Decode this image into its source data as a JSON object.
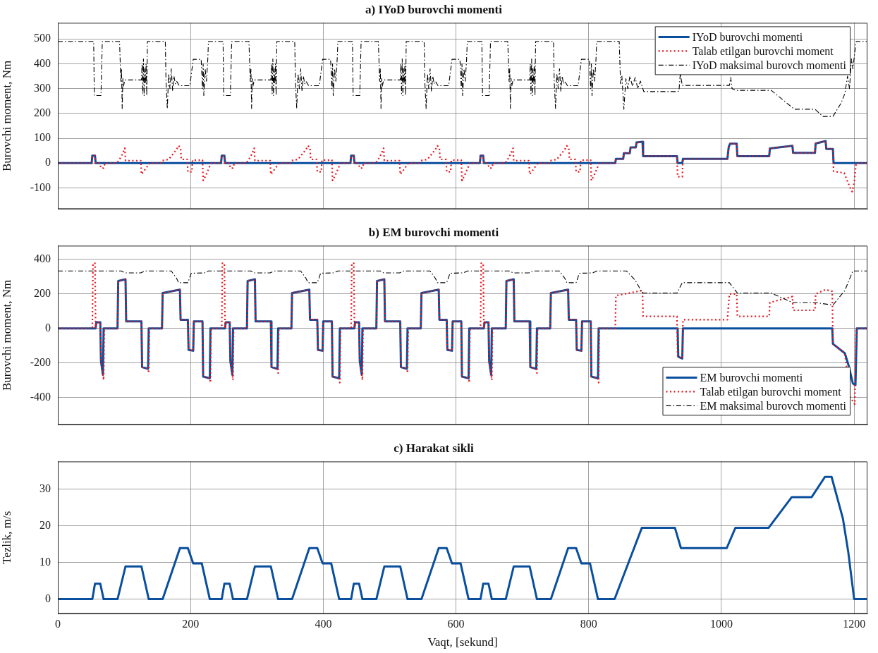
{
  "chart_data": [
    {
      "type": "line",
      "title": "a) IYoD burovchi momenti",
      "ylabel": "Burovchi moment, Nm",
      "xlim": [
        0,
        1220
      ],
      "xticks": [
        0,
        200,
        400,
        600,
        800,
        1000,
        1200
      ],
      "ylim": [
        -185,
        565
      ],
      "yticks": [
        -100,
        0,
        100,
        200,
        300,
        400,
        500
      ],
      "grid": true,
      "legend": "top right",
      "tick_labels": "y",
      "marker": "none",
      "series": [
        {
          "name": "IYoD burovchi momenti",
          "color": "#0a4f9e",
          "line_style": "solid",
          "x": [
            0,
            51,
            52,
            56,
            57,
            246,
            247,
            251,
            252,
            441,
            442,
            446,
            447,
            636,
            637,
            641,
            642,
            840,
            841,
            852,
            853,
            862,
            863,
            871,
            872,
            881,
            882,
            933,
            934,
            941,
            942,
            1009,
            1011,
            1013,
            1023,
            1024,
            1072,
            1073,
            1107,
            1108,
            1141,
            1142,
            1157,
            1158,
            1168,
            1169,
            1220
          ],
          "values": [
            0,
            0,
            30,
            30,
            0,
            0,
            30,
            30,
            0,
            0,
            30,
            30,
            0,
            0,
            30,
            30,
            0,
            0,
            17,
            17,
            40,
            40,
            63,
            63,
            83,
            86,
            28,
            28,
            0,
            0,
            17,
            17,
            65,
            78,
            78,
            28,
            28,
            59,
            70,
            41,
            41,
            79,
            89,
            57,
            57,
            0,
            0
          ]
        },
        {
          "name": "Talab etilgan burovchi moment",
          "color": "#e8141c",
          "line_style": "dotted",
          "x": [
            0,
            51,
            52,
            56,
            57,
            63,
            65,
            69,
            71,
            89,
            93,
            97,
            101,
            102,
            125,
            126,
            129,
            133,
            137,
            139,
            155,
            157,
            167,
            173,
            179,
            182,
            185,
            186,
            195,
            196,
            202,
            203,
            218,
            219,
            223,
            227,
            231,
            246,
            247,
            251,
            252,
            258,
            260,
            264,
            266,
            284,
            288,
            292,
            296,
            297,
            320,
            321,
            324,
            328,
            332,
            334,
            350,
            352,
            362,
            368,
            374,
            377,
            380,
            381,
            390,
            391,
            397,
            398,
            413,
            414,
            418,
            422,
            426,
            441,
            442,
            446,
            447,
            453,
            455,
            459,
            461,
            479,
            483,
            487,
            491,
            492,
            515,
            516,
            519,
            523,
            527,
            529,
            545,
            547,
            557,
            563,
            569,
            572,
            575,
            576,
            585,
            586,
            592,
            593,
            608,
            609,
            613,
            617,
            621,
            636,
            637,
            641,
            642,
            648,
            650,
            654,
            656,
            674,
            678,
            682,
            686,
            687,
            710,
            711,
            714,
            718,
            722,
            724,
            740,
            742,
            752,
            758,
            764,
            767,
            770,
            771,
            780,
            781,
            787,
            788,
            803,
            804,
            808,
            812,
            816,
            840,
            841,
            852,
            853,
            862,
            863,
            871,
            872,
            881,
            882,
            933,
            934,
            941,
            942,
            1009,
            1011,
            1013,
            1023,
            1024,
            1072,
            1073,
            1107,
            1108,
            1141,
            1142,
            1157,
            1158,
            1168,
            1169,
            1185,
            1194,
            1197,
            1200,
            1203,
            1220
          ],
          "values": [
            0,
            0,
            30,
            30,
            0,
            0,
            -20,
            -20,
            0,
            0,
            15,
            35,
            60,
            10,
            10,
            -45,
            -35,
            -20,
            -5,
            0,
            0,
            10,
            15,
            35,
            55,
            70,
            60,
            15,
            15,
            -35,
            -35,
            12,
            12,
            -70,
            -50,
            -25,
            0,
            0,
            30,
            30,
            0,
            0,
            -20,
            -20,
            0,
            0,
            15,
            35,
            60,
            10,
            10,
            -45,
            -35,
            -20,
            -5,
            0,
            0,
            10,
            15,
            35,
            55,
            70,
            60,
            15,
            15,
            -35,
            -35,
            12,
            12,
            -70,
            -50,
            -25,
            0,
            0,
            30,
            30,
            0,
            0,
            -20,
            -20,
            0,
            0,
            15,
            35,
            60,
            10,
            10,
            -45,
            -35,
            -20,
            -5,
            0,
            0,
            10,
            15,
            35,
            55,
            70,
            60,
            15,
            15,
            -35,
            -35,
            12,
            12,
            -70,
            -50,
            -25,
            0,
            0,
            30,
            30,
            0,
            0,
            -20,
            -20,
            0,
            0,
            15,
            35,
            60,
            10,
            10,
            -45,
            -35,
            -20,
            -5,
            0,
            0,
            10,
            15,
            35,
            55,
            70,
            60,
            15,
            15,
            -35,
            -35,
            12,
            12,
            -70,
            -50,
            -25,
            0,
            0,
            17,
            17,
            40,
            40,
            63,
            63,
            83,
            86,
            28,
            28,
            -55,
            -55,
            17,
            17,
            65,
            78,
            78,
            28,
            28,
            59,
            70,
            41,
            41,
            79,
            89,
            57,
            57,
            -33,
            -40,
            -100,
            -115,
            -80,
            0,
            0
          ]
        },
        {
          "name": "IYoD maksimal burovch momenti",
          "color": "#000000",
          "line_style": "dashdot",
          "x": [
            0,
            54,
            55,
            65,
            67,
            93,
            95,
            96,
            97,
            98,
            99,
            101,
            126,
            127,
            128,
            129,
            130,
            131,
            132,
            133,
            134,
            135,
            162,
            163,
            165,
            167,
            169,
            171,
            173,
            175,
            177,
            179,
            183,
            199,
            204,
            216,
            218,
            219,
            220,
            222,
            224,
            226,
            227,
            249,
            250,
            260,
            262,
            288,
            290,
            291,
            292,
            293,
            294,
            296,
            321,
            322,
            323,
            324,
            325,
            326,
            327,
            328,
            329,
            330,
            357,
            358,
            360,
            362,
            364,
            366,
            368,
            370,
            372,
            374,
            378,
            394,
            399,
            411,
            413,
            414,
            415,
            417,
            419,
            421,
            422,
            444,
            445,
            455,
            457,
            483,
            485,
            486,
            487,
            488,
            489,
            491,
            516,
            517,
            518,
            519,
            520,
            521,
            522,
            523,
            524,
            525,
            552,
            553,
            555,
            557,
            559,
            561,
            563,
            565,
            567,
            569,
            573,
            589,
            594,
            606,
            608,
            609,
            610,
            612,
            614,
            616,
            617,
            639,
            640,
            650,
            652,
            678,
            680,
            681,
            682,
            683,
            684,
            686,
            711,
            712,
            713,
            714,
            715,
            716,
            717,
            718,
            719,
            720,
            747,
            748,
            750,
            752,
            754,
            756,
            758,
            760,
            762,
            764,
            768,
            784,
            789,
            801,
            803,
            804,
            805,
            807,
            809,
            811,
            812,
            846,
            848,
            850,
            853,
            856,
            859,
            862,
            866,
            870,
            874,
            878,
            883,
            933,
            936,
            938,
            941,
            1012,
            1014,
            1016,
            1022,
            1075,
            1110,
            1141,
            1153,
            1168,
            1180,
            1186,
            1190,
            1193,
            1196,
            1198,
            1203,
            1220
          ],
          "values": [
            490,
            490,
            272,
            272,
            490,
            490,
            330,
            380,
            220,
            340,
            310,
            335,
            335,
            400,
            280,
            420,
            272,
            380,
            320,
            400,
            272,
            490,
            490,
            330,
            220,
            360,
            300,
            380,
            290,
            350,
            320,
            330,
            312,
            312,
            418,
            418,
            300,
            400,
            272,
            380,
            330,
            420,
            490,
            490,
            272,
            272,
            490,
            490,
            330,
            380,
            220,
            340,
            310,
            335,
            335,
            400,
            280,
            420,
            272,
            380,
            320,
            400,
            272,
            490,
            490,
            330,
            220,
            360,
            300,
            380,
            290,
            350,
            320,
            330,
            312,
            312,
            418,
            418,
            300,
            400,
            272,
            380,
            330,
            420,
            490,
            490,
            272,
            272,
            490,
            490,
            330,
            380,
            220,
            340,
            310,
            335,
            335,
            400,
            280,
            420,
            272,
            380,
            320,
            400,
            272,
            490,
            490,
            330,
            220,
            360,
            300,
            380,
            290,
            350,
            320,
            330,
            312,
            312,
            418,
            418,
            300,
            400,
            272,
            380,
            330,
            420,
            490,
            490,
            272,
            272,
            490,
            490,
            330,
            380,
            220,
            340,
            310,
            335,
            335,
            400,
            280,
            420,
            272,
            380,
            320,
            400,
            272,
            490,
            490,
            330,
            220,
            360,
            300,
            380,
            290,
            350,
            320,
            330,
            312,
            312,
            418,
            418,
            300,
            400,
            272,
            380,
            330,
            420,
            490,
            490,
            320,
            350,
            217,
            340,
            300,
            350,
            310,
            345,
            300,
            330,
            288,
            288,
            290,
            360,
            313,
            313,
            345,
            300,
            293,
            293,
            217,
            217,
            188,
            188,
            240,
            280,
            350,
            300,
            420,
            380,
            490,
            490
          ]
        }
      ]
    },
    {
      "type": "line",
      "title": "b) EM burovchi momenti",
      "ylabel": "Burovchi moment, Nm",
      "xlim": [
        0,
        1220
      ],
      "xticks": [
        0,
        200,
        400,
        600,
        800,
        1000,
        1200
      ],
      "ylim": [
        -560,
        480
      ],
      "yticks": [
        -400,
        -200,
        0,
        200,
        400
      ],
      "grid": true,
      "legend": "bottom right",
      "tick_labels": "y",
      "marker": "none",
      "series": [
        {
          "name": "EM burovchi momenti",
          "color": "#0a4f9e",
          "line_style": "solid",
          "x": [
            0,
            57,
            58,
            64,
            65,
            68,
            69,
            90,
            91,
            102,
            103,
            126,
            127,
            136,
            137,
            157,
            158,
            184,
            185,
            196,
            197,
            204,
            205,
            218,
            219,
            229,
            230,
            252,
            253,
            259,
            260,
            263,
            264,
            285,
            286,
            297,
            298,
            321,
            322,
            331,
            332,
            352,
            353,
            379,
            380,
            391,
            392,
            399,
            400,
            413,
            414,
            424,
            425,
            447,
            448,
            454,
            455,
            458,
            459,
            480,
            481,
            492,
            493,
            516,
            517,
            526,
            527,
            547,
            548,
            574,
            575,
            586,
            587,
            594,
            595,
            608,
            609,
            619,
            620,
            642,
            643,
            649,
            650,
            653,
            654,
            675,
            676,
            687,
            688,
            711,
            712,
            721,
            722,
            742,
            743,
            769,
            770,
            781,
            782,
            789,
            790,
            803,
            804,
            814,
            815,
            934,
            935,
            941,
            942,
            1167,
            1168,
            1186,
            1192,
            1198,
            1202,
            1204,
            1220
          ],
          "values": [
            0,
            0,
            35,
            35,
            -190,
            -270,
            0,
            0,
            275,
            285,
            40,
            40,
            -225,
            -235,
            0,
            0,
            205,
            225,
            50,
            50,
            -125,
            -130,
            40,
            40,
            -280,
            -290,
            0,
            0,
            35,
            35,
            -190,
            -270,
            0,
            0,
            275,
            285,
            40,
            40,
            -225,
            -235,
            0,
            0,
            205,
            225,
            50,
            50,
            -125,
            -130,
            40,
            40,
            -280,
            -290,
            0,
            0,
            35,
            35,
            -190,
            -270,
            0,
            0,
            275,
            285,
            40,
            40,
            -225,
            -235,
            0,
            0,
            205,
            225,
            50,
            50,
            -125,
            -130,
            40,
            40,
            -280,
            -290,
            0,
            0,
            35,
            35,
            -190,
            -270,
            0,
            0,
            275,
            285,
            40,
            40,
            -225,
            -235,
            0,
            0,
            205,
            225,
            50,
            50,
            -125,
            -130,
            40,
            40,
            -280,
            -290,
            0,
            0,
            -165,
            -175,
            0,
            0,
            -90,
            -145,
            -220,
            -320,
            -330,
            0,
            0
          ]
        },
        {
          "name": "Talab etilgan burovchi moment",
          "color": "#e8141c",
          "line_style": "dotted",
          "x": [
            0,
            52,
            53,
            56,
            57,
            58,
            64,
            65,
            68,
            69,
            70,
            90,
            91,
            102,
            103,
            126,
            127,
            136,
            137,
            138,
            157,
            158,
            184,
            185,
            196,
            197,
            204,
            205,
            218,
            219,
            229,
            230,
            231,
            247,
            248,
            251,
            252,
            253,
            259,
            260,
            263,
            264,
            265,
            285,
            286,
            297,
            298,
            321,
            322,
            331,
            332,
            333,
            352,
            353,
            379,
            380,
            391,
            392,
            399,
            400,
            413,
            414,
            424,
            425,
            426,
            442,
            443,
            446,
            447,
            448,
            454,
            455,
            458,
            459,
            460,
            480,
            481,
            492,
            493,
            516,
            517,
            526,
            527,
            528,
            547,
            548,
            574,
            575,
            586,
            587,
            594,
            595,
            608,
            609,
            619,
            620,
            621,
            637,
            638,
            641,
            642,
            643,
            649,
            650,
            653,
            654,
            655,
            675,
            676,
            687,
            688,
            711,
            712,
            721,
            722,
            723,
            742,
            743,
            769,
            770,
            781,
            782,
            789,
            790,
            803,
            804,
            814,
            815,
            816,
            840,
            841,
            881,
            882,
            933,
            934,
            941,
            942,
            1009,
            1012,
            1023,
            1024,
            1072,
            1073,
            1107,
            1108,
            1141,
            1142,
            1157,
            1167,
            1168,
            1186,
            1194,
            1201,
            1203,
            1220
          ],
          "values": [
            0,
            0,
            378,
            378,
            0,
            35,
            35,
            -190,
            -270,
            -300,
            0,
            0,
            275,
            285,
            40,
            40,
            -225,
            -235,
            -260,
            0,
            0,
            205,
            225,
            50,
            50,
            -125,
            -130,
            40,
            40,
            -280,
            -290,
            -315,
            0,
            0,
            378,
            378,
            0,
            35,
            35,
            -190,
            -270,
            -300,
            0,
            0,
            275,
            285,
            40,
            40,
            -225,
            -235,
            -260,
            0,
            0,
            205,
            225,
            50,
            50,
            -125,
            -130,
            40,
            40,
            -280,
            -290,
            -315,
            0,
            0,
            378,
            378,
            0,
            35,
            35,
            -190,
            -270,
            -300,
            0,
            0,
            275,
            285,
            40,
            40,
            -225,
            -235,
            -260,
            0,
            0,
            205,
            225,
            50,
            50,
            -125,
            -130,
            40,
            40,
            -280,
            -290,
            -315,
            0,
            0,
            378,
            378,
            0,
            35,
            35,
            -190,
            -270,
            -300,
            0,
            0,
            275,
            285,
            40,
            40,
            -225,
            -235,
            -260,
            0,
            0,
            205,
            225,
            50,
            50,
            -125,
            -130,
            40,
            40,
            -280,
            -290,
            -315,
            0,
            0,
            190,
            220,
            70,
            70,
            -165,
            -175,
            50,
            50,
            200,
            200,
            70,
            70,
            150,
            185,
            105,
            105,
            200,
            225,
            215,
            -90,
            -145,
            -400,
            -440,
            0,
            0
          ]
        },
        {
          "name": "EM maksimal burovch momenti",
          "color": "#000000",
          "line_style": "dashdot",
          "x": [
            0,
            96,
            101,
            125,
            131,
            171,
            179,
            182,
            196,
            201,
            221,
            227,
            291,
            296,
            320,
            326,
            366,
            374,
            377,
            391,
            396,
            416,
            422,
            486,
            491,
            515,
            521,
            561,
            569,
            572,
            586,
            591,
            611,
            617,
            681,
            686,
            710,
            716,
            756,
            764,
            767,
            781,
            786,
            806,
            812,
            857,
            870,
            881,
            933,
            941,
            1012,
            1024,
            1075,
            1107,
            1141,
            1168,
            1186,
            1198,
            1220
          ],
          "values": [
            333,
            333,
            322,
            322,
            333,
            333,
            290,
            265,
            265,
            320,
            322,
            333,
            333,
            322,
            322,
            333,
            333,
            290,
            265,
            265,
            320,
            322,
            333,
            333,
            322,
            322,
            333,
            333,
            290,
            265,
            265,
            320,
            322,
            333,
            333,
            322,
            322,
            333,
            333,
            290,
            265,
            265,
            320,
            322,
            333,
            333,
            280,
            205,
            205,
            265,
            265,
            205,
            205,
            150,
            150,
            135,
            220,
            333,
            333
          ]
        }
      ]
    },
    {
      "type": "line",
      "title": "c) Harakat sikli",
      "xlabel": "Vaqt, [sekund]",
      "ylabel": "Tezlik, m/s",
      "xlim": [
        0,
        1220
      ],
      "xticks": [
        0,
        200,
        400,
        600,
        800,
        1000,
        1200
      ],
      "ylim": [
        -4,
        37.5
      ],
      "yticks": [
        0,
        10,
        20,
        30
      ],
      "grid": true,
      "marker": "none",
      "series": [
        {
          "color": "#0a4f9e",
          "line_style": "solid",
          "x": [
            0,
            52,
            56,
            64,
            69,
            90,
            102,
            126,
            137,
            158,
            184,
            196,
            204,
            217,
            229,
            247,
            251,
            259,
            264,
            285,
            297,
            321,
            332,
            353,
            379,
            391,
            399,
            412,
            424,
            442,
            446,
            454,
            459,
            480,
            492,
            516,
            527,
            548,
            574,
            586,
            594,
            607,
            619,
            637,
            641,
            649,
            654,
            675,
            687,
            711,
            722,
            743,
            769,
            781,
            789,
            802,
            814,
            839,
            880,
            930,
            939,
            1008,
            1021,
            1071,
            1106,
            1136,
            1156,
            1166,
            1183,
            1191,
            1200,
            1220
          ],
          "values": [
            0,
            0,
            4.2,
            4.2,
            0,
            0,
            8.9,
            8.9,
            0,
            0,
            13.9,
            13.9,
            9.7,
            9.7,
            0,
            0,
            4.2,
            4.2,
            0,
            0,
            8.9,
            8.9,
            0,
            0,
            13.9,
            13.9,
            9.7,
            9.7,
            0,
            0,
            4.2,
            4.2,
            0,
            0,
            8.9,
            8.9,
            0,
            0,
            13.9,
            13.9,
            9.7,
            9.7,
            0,
            0,
            4.2,
            4.2,
            0,
            0,
            8.9,
            8.9,
            0,
            0,
            13.9,
            13.9,
            9.7,
            9.7,
            0,
            0,
            19.4,
            19.4,
            13.9,
            13.9,
            19.4,
            19.4,
            27.8,
            27.8,
            33.3,
            33.3,
            22,
            13,
            0,
            0
          ]
        }
      ]
    }
  ]
}
